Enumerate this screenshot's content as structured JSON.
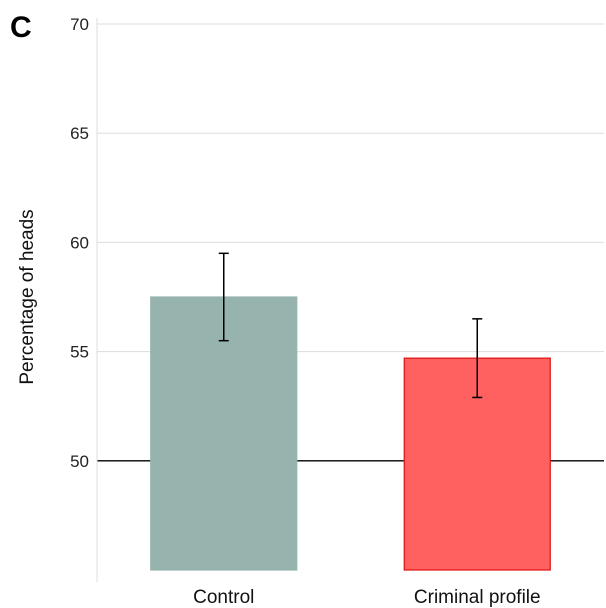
{
  "panel_label": "C",
  "chart_data": {
    "type": "bar",
    "categories": [
      "Control",
      "Criminal profile"
    ],
    "values": [
      57.5,
      54.7
    ],
    "error_low": [
      55.5,
      52.9
    ],
    "error_high": [
      59.5,
      56.5
    ],
    "reference_line": 50,
    "ylabel": "Percentage of heads",
    "xlabel": "",
    "ylim": [
      45,
      70
    ],
    "yticks": [
      50,
      55,
      60,
      65,
      70
    ],
    "grid": "horizontal",
    "colors": {
      "bar_fill": [
        "#96b4ad",
        "#ff6060"
      ],
      "bar_stroke": [
        "#96b4ad",
        "#e01010"
      ],
      "grid": "#dddddd",
      "reference_line": "#000000",
      "error_bar": "#000000"
    }
  }
}
